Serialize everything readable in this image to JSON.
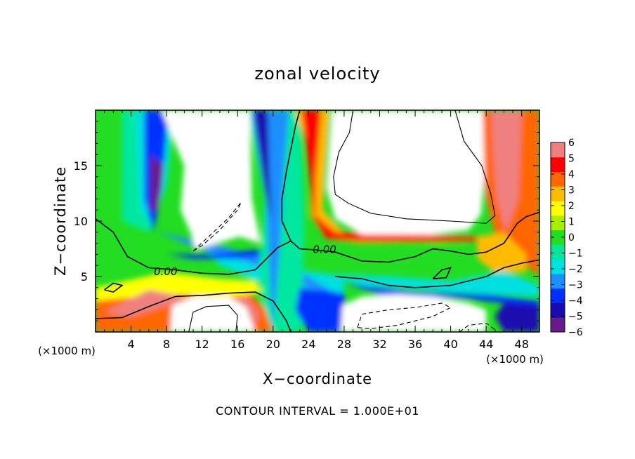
{
  "chart_data": {
    "type": "heatmap",
    "title": "zonal velocity",
    "xlabel": "X−coordinate",
    "ylabel": "Z−coordinate",
    "x_scale_note": "(×1000 m)",
    "y_scale_note": "(×1000 m)",
    "xlim": [
      0,
      50
    ],
    "ylim": [
      0,
      20
    ],
    "x_ticks": [
      4,
      8,
      12,
      16,
      20,
      24,
      28,
      32,
      36,
      40,
      44,
      48
    ],
    "x_tick_labels": [
      "4",
      "8",
      "12",
      "16",
      "20",
      "24",
      "28",
      "32",
      "36",
      "40",
      "44",
      "48"
    ],
    "y_ticks": [
      5,
      10,
      15
    ],
    "y_tick_labels": [
      "5",
      "10",
      "15"
    ],
    "colorbar": {
      "min": -6,
      "max": 6,
      "ticks": [
        6,
        5,
        4,
        3,
        2,
        1,
        0,
        -1,
        -2,
        -3,
        -4,
        -5,
        -6
      ],
      "tick_labels": [
        "6",
        "5",
        "4",
        "3",
        "2",
        "1",
        "0",
        "−1",
        "−2",
        "−3",
        "−4",
        "−5",
        "−6"
      ],
      "colors": [
        "#6a1b8a",
        "#1a0bb0",
        "#0030ff",
        "#1e8fff",
        "#00e0e0",
        "#00e8a0",
        "#22dd22",
        "#aaee00",
        "#ffff00",
        "#ffbb00",
        "#ff6600",
        "#ff0000",
        "#f08080"
      ],
      "saturation_above": "white",
      "saturation_below": "white"
    },
    "contour_labels": [
      "0.00",
      "0.00"
    ],
    "contour_label_positions": [
      [
        7.9,
        5.4
      ],
      [
        25.8,
        7.4
      ]
    ],
    "contours": [
      {
        "level": 0,
        "style": "solid",
        "points": [
          [
            0,
            10.2
          ],
          [
            2.0,
            9.0
          ],
          [
            3.6,
            6.8
          ],
          [
            6.0,
            5.8
          ],
          [
            9.0,
            5.6
          ],
          [
            12.0,
            5.3
          ],
          [
            15.0,
            5.2
          ],
          [
            18.0,
            5.6
          ],
          [
            20.5,
            7.6
          ],
          [
            22.0,
            8.2
          ],
          [
            23.0,
            7.5
          ],
          [
            24.8,
            7.4
          ],
          [
            27.0,
            7.2
          ],
          [
            30.0,
            6.4
          ],
          [
            33.0,
            6.3
          ],
          [
            36.0,
            6.8
          ],
          [
            38.0,
            7.5
          ],
          [
            40.0,
            7.3
          ],
          [
            42.0,
            7.0
          ],
          [
            44.0,
            7.2
          ],
          [
            46.0,
            8.0
          ],
          [
            47.5,
            9.8
          ],
          [
            48.5,
            10.4
          ],
          [
            50,
            10.8
          ]
        ]
      },
      {
        "level": 0,
        "style": "solid",
        "points": [
          [
            22.0,
            8.2
          ],
          [
            21.0,
            10.0
          ],
          [
            21.0,
            12.0
          ],
          [
            21.5,
            14.5
          ],
          [
            22.0,
            16.5
          ],
          [
            22.5,
            18.5
          ],
          [
            23.0,
            20
          ]
        ]
      },
      {
        "level": 0,
        "style": "solid",
        "points": [
          [
            0,
            1.2
          ],
          [
            3.0,
            1.3
          ],
          [
            6.0,
            2.3
          ],
          [
            9.0,
            3.2
          ],
          [
            12.0,
            3.3
          ],
          [
            15.0,
            3.5
          ],
          [
            18.0,
            3.6
          ],
          [
            20.0,
            2.8
          ],
          [
            21.5,
            1.0
          ],
          [
            22.0,
            0
          ]
        ]
      },
      {
        "level": 0,
        "style": "solid",
        "points": [
          [
            27.0,
            5.0
          ],
          [
            30.0,
            4.8
          ],
          [
            33.0,
            4.2
          ],
          [
            36.0,
            4.0
          ],
          [
            40.0,
            4.2
          ],
          [
            44.0,
            5.0
          ],
          [
            46.0,
            5.8
          ],
          [
            48.0,
            6.2
          ],
          [
            50,
            6.5
          ]
        ]
      },
      {
        "level": 0,
        "style": "solid",
        "points": [
          [
            38.0,
            4.8
          ],
          [
            39.0,
            5.6
          ],
          [
            40.0,
            5.8
          ],
          [
            39.5,
            4.9
          ],
          [
            38.0,
            4.8
          ]
        ]
      },
      {
        "level": 0,
        "style": "solid",
        "points": [
          [
            1.0,
            3.8
          ],
          [
            2.0,
            4.4
          ],
          [
            3.0,
            4.2
          ],
          [
            2.0,
            3.6
          ],
          [
            1.0,
            3.8
          ]
        ]
      },
      {
        "level": 10,
        "style": "solid",
        "points": [
          [
            29.0,
            20
          ],
          [
            28.6,
            18.0
          ],
          [
            27.4,
            16.2
          ],
          [
            26.8,
            14.0
          ],
          [
            27.0,
            12.4
          ],
          [
            28.5,
            11.6
          ],
          [
            31.0,
            10.7
          ],
          [
            35.0,
            10.2
          ],
          [
            40.0,
            10.0
          ],
          [
            44.0,
            9.8
          ],
          [
            45.0,
            10.5
          ],
          [
            44.5,
            12.5
          ],
          [
            43.5,
            15.0
          ],
          [
            41.5,
            17.2
          ],
          [
            40.5,
            20
          ]
        ]
      },
      {
        "level": 10,
        "style": "solid",
        "points": [
          [
            10.5,
            0
          ],
          [
            11.0,
            1.8
          ],
          [
            12.5,
            2.3
          ],
          [
            15.0,
            2.4
          ],
          [
            16.0,
            1.5
          ],
          [
            15.8,
            0
          ]
        ]
      },
      {
        "level": -10,
        "style": "dashed",
        "points": [
          [
            11.0,
            7.3
          ],
          [
            13.0,
            8.8
          ],
          [
            15.0,
            10.3
          ],
          [
            16.4,
            11.7
          ],
          [
            16.0,
            11.0
          ],
          [
            14.0,
            9.2
          ],
          [
            12.0,
            7.8
          ],
          [
            11.0,
            7.3
          ]
        ]
      },
      {
        "level": -10,
        "style": "dashed",
        "points": [
          [
            29.5,
            0.4
          ],
          [
            30.0,
            1.6
          ],
          [
            33.0,
            2.0
          ],
          [
            36.0,
            2.2
          ],
          [
            39.0,
            2.6
          ],
          [
            40.0,
            2.2
          ],
          [
            38.0,
            1.4
          ],
          [
            36.0,
            1.0
          ],
          [
            34.0,
            0.6
          ],
          [
            31.0,
            0.3
          ],
          [
            29.5,
            0.4
          ]
        ]
      },
      {
        "level": -10,
        "style": "dashed",
        "points": [
          [
            41.0,
            0
          ],
          [
            42.0,
            0.6
          ],
          [
            44.0,
            0.8
          ],
          [
            45.0,
            0.2
          ],
          [
            45.0,
            0
          ]
        ]
      }
    ]
  },
  "footnote": "CONTOUR INTERVAL = 1.000E+01"
}
